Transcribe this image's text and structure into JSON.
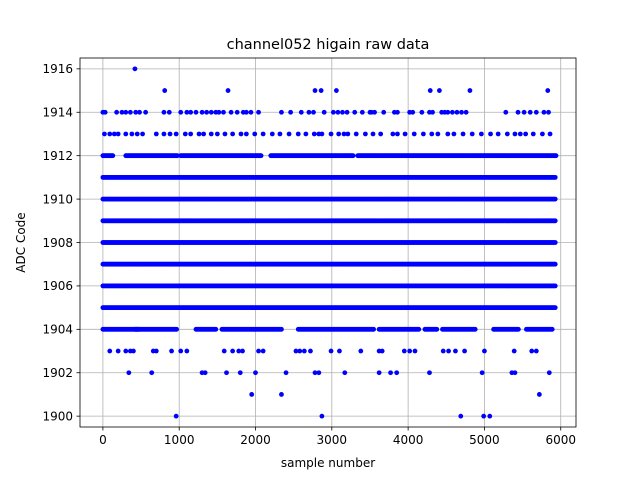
{
  "chart_data": {
    "type": "scatter",
    "title": "channel052 higain raw data",
    "xlabel": "sample number",
    "ylabel": "ADC Code",
    "xlim": [
      -300,
      6200
    ],
    "ylim": [
      1899.5,
      1916.5
    ],
    "xticks": [
      0,
      1000,
      2000,
      3000,
      4000,
      5000,
      6000
    ],
    "yticks": [
      1900,
      1902,
      1904,
      1906,
      1908,
      1910,
      1912,
      1914,
      1916
    ],
    "grid": true,
    "marker_color": "#0000ff",
    "marker": "circle",
    "n_samples": 5940,
    "series": [
      {
        "name": "",
        "levels": [
          {
            "y": 1900,
            "x": [
              960,
              2870,
              4690,
              4990,
              5070
            ]
          },
          {
            "y": 1901,
            "x": [
              1950,
              2340,
              5720
            ]
          },
          {
            "y": 1902,
            "x": [
              340,
              640,
              1300,
              1340,
              1620,
              1800,
              2000,
              2400,
              2780,
              2830,
              3170,
              3620,
              3770,
              3850,
              4280,
              4970,
              5360,
              5400,
              5850
            ]
          },
          {
            "y": 1903,
            "x": [
              90,
              200,
              300,
              360,
              400,
              660,
              700,
              900,
              1020,
              1100,
              1590,
              1700,
              1780,
              1830,
              2040,
              2100,
              2530,
              2580,
              2640,
              2720,
              2990,
              3100,
              3380,
              3620,
              3660,
              3950,
              4020,
              4090,
              4460,
              4530,
              4620,
              4740,
              5000,
              5390,
              5620,
              5680
            ]
          },
          {
            "y": 1904,
            "ranges": [
              [
                0,
                480
              ],
              [
                420,
                970
              ],
              [
                1220,
                1480
              ],
              [
                1560,
                2340
              ],
              [
                2560,
                3560
              ],
              [
                3620,
                4150
              ],
              [
                4220,
                4380
              ],
              [
                4450,
                4880
              ],
              [
                5120,
                5450
              ],
              [
                5550,
                5900
              ]
            ]
          },
          {
            "y": 1905,
            "ranges": [
              [
                0,
                5940
              ]
            ]
          },
          {
            "y": 1906,
            "ranges": [
              [
                0,
                5940
              ]
            ]
          },
          {
            "y": 1907,
            "ranges": [
              [
                0,
                5940
              ]
            ]
          },
          {
            "y": 1908,
            "ranges": [
              [
                0,
                5940
              ]
            ]
          },
          {
            "y": 1909,
            "ranges": [
              [
                0,
                5940
              ]
            ]
          },
          {
            "y": 1910,
            "ranges": [
              [
                0,
                5940
              ]
            ]
          },
          {
            "y": 1911,
            "ranges": [
              [
                0,
                5940
              ]
            ]
          },
          {
            "y": 1912,
            "ranges": [
              [
                0,
                140
              ],
              [
                300,
                980
              ],
              [
                1020,
                2080
              ],
              [
                2200,
                3280
              ],
              [
                3340,
                4550
              ],
              [
                4560,
                5940
              ]
            ]
          },
          {
            "y": 1913,
            "x": [
              20,
              90,
              150,
              200,
              300,
              380,
              450,
              520,
              700,
              800,
              880,
              960,
              1080,
              1150,
              1260,
              1320,
              1420,
              1500,
              1600,
              1700,
              1810,
              1880,
              1990,
              2100,
              2220,
              2320,
              2440,
              2560,
              2660,
              2770,
              2830,
              2870,
              2990,
              3090,
              3160,
              3210,
              3320,
              3440,
              3540,
              3640,
              3800,
              3860,
              3960,
              4080,
              4200,
              4310,
              4390,
              4520,
              4600,
              4720,
              4840,
              4960,
              5080,
              5180,
              5300,
              5400,
              5470,
              5540,
              5640,
              5760,
              5860
            ]
          },
          {
            "y": 1914,
            "x": [
              0,
              30,
              180,
              250,
              300,
              360,
              430,
              480,
              560,
              800,
              870,
              1020,
              1100,
              1150,
              1220,
              1300,
              1360,
              1420,
              1480,
              1520,
              1580,
              1680,
              1760,
              1840,
              1880,
              1940,
              2040,
              2340,
              2460,
              2600,
              2700,
              2760,
              2900,
              3020,
              3080,
              3140,
              3200,
              3300,
              3400,
              3500,
              3520,
              3560,
              3680,
              3820,
              3860,
              4020,
              4060,
              4180,
              4280,
              4320,
              4440,
              4480,
              4520,
              4580,
              4640,
              4700,
              4760,
              5280,
              5440,
              5520,
              5600,
              5680,
              5780,
              5840
            ]
          },
          {
            "y": 1915,
            "x": [
              810,
              1640,
              2780,
              2860,
              3060,
              4290,
              4410,
              4810,
              5830
            ]
          },
          {
            "y": 1916,
            "x": [
              420
            ]
          }
        ]
      }
    ]
  }
}
